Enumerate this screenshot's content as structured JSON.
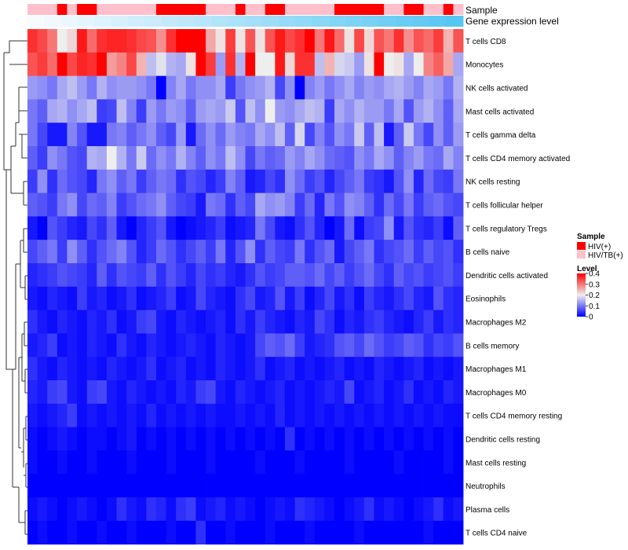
{
  "chart_data": {
    "type": "heatmap",
    "title": "",
    "n_samples": 44,
    "annotation_rows": [
      "Sample",
      "Gene expression level"
    ],
    "rows": [
      "T cells CD8",
      "Monocytes",
      "NK cells activated",
      "Mast cells activated",
      "T cells gamma delta",
      "T cells CD4 memory activated",
      "NK cells resting",
      "T cells follicular helper",
      "T cells regulatory  Tregs",
      "B cells naive",
      "Dendritic cells activated",
      "Eosinophils",
      "Macrophages M2",
      "B cells memory",
      "Macrophages M1",
      "Macrophages M0",
      "T cells CD4 memory resting",
      "Dendritic cells resting",
      "Mast cells resting",
      "Neutrophils",
      "Plasma cells",
      "T cells CD4 naive"
    ],
    "sample_groups": [
      1,
      1,
      1,
      0,
      1,
      0,
      0,
      1,
      1,
      1,
      1,
      1,
      1,
      0,
      0,
      0,
      0,
      0,
      1,
      1,
      1,
      0,
      1,
      1,
      0,
      0,
      1,
      1,
      1,
      1,
      1,
      0,
      0,
      0,
      0,
      0,
      1,
      1,
      0,
      0,
      1,
      1,
      0,
      1
    ],
    "expression_gradient": [
      0,
      0.04,
      0.08,
      0.12,
      0.16,
      0.2,
      0.24,
      0.28,
      0.32,
      0.36,
      0.4,
      0.44,
      0.48,
      0.52,
      0.56,
      0.6,
      0.64,
      0.68,
      0.72,
      0.76,
      0.8,
      0.84,
      0.88,
      0.92,
      0.96,
      1
    ],
    "row_means": [
      0.34,
      0.28,
      0.13,
      0.12,
      0.09,
      0.1,
      0.07,
      0.07,
      0.04,
      0.06,
      0.05,
      0.03,
      0.03,
      0.03,
      0.02,
      0.02,
      0.01,
      0.01,
      0.005,
      0.002,
      0.02,
      0.01
    ],
    "values": [
      [
        0.36,
        0.34,
        0.3,
        0.2,
        0.22,
        0.38,
        0.31,
        0.36,
        0.37,
        0.37,
        0.36,
        0.34,
        0.33,
        0.28,
        0.36,
        0.4,
        0.4,
        0.4,
        0.26,
        0.21,
        0.35,
        0.21,
        0.33,
        0.21,
        0.33,
        0.38,
        0.34,
        0.36,
        0.4,
        0.3,
        0.38,
        0.31,
        0.21,
        0.34,
        0.22,
        0.33,
        0.3,
        0.36,
        0.28,
        0.33,
        0.31,
        0.35,
        0.25,
        0.33
      ],
      [
        0.33,
        0.35,
        0.31,
        0.4,
        0.34,
        0.37,
        0.36,
        0.4,
        0.27,
        0.29,
        0.34,
        0.25,
        0.16,
        0.19,
        0.15,
        0.14,
        0.21,
        0.4,
        0.35,
        0.13,
        0.36,
        0.15,
        0.4,
        0.2,
        0.2,
        0.38,
        0.22,
        0.36,
        0.36,
        0.16,
        0.25,
        0.18,
        0.17,
        0.13,
        0.21,
        0.4,
        0.2,
        0.21,
        0.14,
        0.2,
        0.29,
        0.32,
        0.26,
        0.14
      ],
      [
        0.13,
        0.12,
        0.1,
        0.14,
        0.16,
        0.13,
        0.1,
        0.15,
        0.12,
        0.13,
        0.13,
        0.12,
        0.1,
        0.0,
        0.11,
        0.14,
        0.1,
        0.12,
        0.12,
        0.14,
        0.05,
        0.1,
        0.12,
        0.13,
        0.15,
        0.06,
        0.12,
        0.0,
        0.11,
        0.13,
        0.1,
        0.12,
        0.14,
        0.11,
        0.13,
        0.12,
        0.14,
        0.15,
        0.13,
        0.11,
        0.14,
        0.13,
        0.1,
        0.15
      ],
      [
        0.1,
        0.08,
        0.14,
        0.15,
        0.12,
        0.14,
        0.16,
        0.05,
        0.06,
        0.16,
        0.11,
        0.05,
        0.13,
        0.1,
        0.13,
        0.12,
        0.08,
        0.13,
        0.14,
        0.13,
        0.17,
        0.07,
        0.16,
        0.12,
        0.2,
        0.13,
        0.12,
        0.14,
        0.16,
        0.15,
        0.05,
        0.14,
        0.12,
        0.15,
        0.13,
        0.13,
        0.1,
        0.14,
        0.07,
        0.13,
        0.15,
        0.12,
        0.08,
        0.14
      ],
      [
        0.1,
        0.06,
        0.02,
        0.02,
        0.11,
        0.07,
        0.02,
        0.02,
        0.1,
        0.11,
        0.08,
        0.1,
        0.12,
        0.08,
        0.06,
        0.13,
        0.02,
        0.09,
        0.12,
        0.09,
        0.13,
        0.11,
        0.1,
        0.14,
        0.12,
        0.16,
        0.08,
        0.18,
        0.06,
        0.11,
        0.07,
        0.12,
        0.1,
        0.17,
        0.08,
        0.16,
        0.02,
        0.08,
        0.17,
        0.1,
        0.06,
        0.12,
        0.08,
        0.13
      ],
      [
        0.08,
        0.05,
        0.12,
        0.1,
        0.07,
        0.06,
        0.15,
        0.14,
        0.2,
        0.15,
        0.1,
        0.17,
        0.09,
        0.12,
        0.1,
        0.15,
        0.11,
        0.08,
        0.12,
        0.1,
        0.16,
        0.12,
        0.06,
        0.1,
        0.08,
        0.09,
        0.13,
        0.11,
        0.14,
        0.12,
        0.09,
        0.08,
        0.07,
        0.12,
        0.1,
        0.14,
        0.12,
        0.08,
        0.11,
        0.13,
        0.1,
        0.09,
        0.14,
        0.11
      ],
      [
        0.05,
        0.12,
        0.04,
        0.09,
        0.07,
        0.06,
        0.03,
        0.1,
        0.12,
        0.08,
        0.1,
        0.05,
        0.08,
        0.1,
        0.09,
        0.04,
        0.07,
        0.06,
        0.03,
        0.05,
        0.11,
        0.08,
        0.02,
        0.03,
        0.06,
        0.04,
        0.12,
        0.09,
        0.05,
        0.07,
        0.03,
        0.06,
        0.08,
        0.1,
        0.05,
        0.04,
        0.02,
        0.07,
        0.12,
        0.03,
        0.09,
        0.06,
        0.05,
        0.1
      ],
      [
        0.08,
        0.07,
        0.05,
        0.1,
        0.12,
        0.06,
        0.09,
        0.08,
        0.11,
        0.05,
        0.07,
        0.09,
        0.1,
        0.12,
        0.08,
        0.06,
        0.05,
        0.02,
        0.1,
        0.09,
        0.04,
        0.08,
        0.06,
        0.14,
        0.12,
        0.13,
        0.11,
        0.05,
        0.09,
        0.03,
        0.1,
        0.07,
        0.12,
        0.11,
        0.08,
        0.04,
        0.09,
        0.06,
        0.1,
        0.05,
        0.08,
        0.09,
        0.07,
        0.06
      ],
      [
        0.02,
        0.0,
        0.07,
        0.05,
        0.03,
        0.02,
        0.06,
        0.04,
        0.08,
        0.02,
        0.0,
        0.03,
        0.05,
        0.07,
        0.02,
        0.0,
        0.01,
        0.02,
        0.03,
        0.05,
        0.01,
        0.02,
        0.03,
        0.1,
        0.06,
        0.02,
        0.01,
        0.04,
        0.07,
        0.03,
        0.0,
        0.02,
        0.09,
        0.01,
        0.05,
        0.06,
        0.12,
        0.02,
        0.07,
        0.04,
        0.03,
        0.05,
        0.01,
        0.08
      ],
      [
        0.06,
        0.08,
        0.1,
        0.05,
        0.12,
        0.08,
        0.04,
        0.07,
        0.09,
        0.11,
        0.07,
        0.03,
        0.05,
        0.09,
        0.07,
        0.04,
        0.06,
        0.08,
        0.05,
        0.1,
        0.03,
        0.07,
        0.12,
        0.04,
        0.08,
        0.06,
        0.05,
        0.1,
        0.04,
        0.07,
        0.09,
        0.02,
        0.06,
        0.08,
        0.1,
        0.04,
        0.06,
        0.07,
        0.09,
        0.05,
        0.08,
        0.06,
        0.07,
        0.04
      ],
      [
        0.03,
        0.04,
        0.05,
        0.07,
        0.06,
        0.05,
        0.03,
        0.08,
        0.04,
        0.07,
        0.06,
        0.05,
        0.08,
        0.04,
        0.07,
        0.05,
        0.03,
        0.06,
        0.04,
        0.05,
        0.03,
        0.02,
        0.04,
        0.07,
        0.05,
        0.06,
        0.08,
        0.08,
        0.07,
        0.09,
        0.06,
        0.08,
        0.05,
        0.07,
        0.09,
        0.06,
        0.04,
        0.08,
        0.06,
        0.07,
        0.05,
        0.06,
        0.07,
        0.05
      ],
      [
        0.02,
        0.01,
        0.03,
        0.02,
        0.01,
        0.05,
        0.02,
        0.03,
        0.01,
        0.02,
        0.04,
        0.01,
        0.02,
        0.03,
        0.05,
        0.01,
        0.02,
        0.06,
        0.03,
        0.02,
        0.01,
        0.04,
        0.06,
        0.02,
        0.03,
        0.07,
        0.02,
        0.05,
        0.01,
        0.03,
        0.06,
        0.02,
        0.04,
        0.01,
        0.05,
        0.03,
        0.02,
        0.04,
        0.06,
        0.03,
        0.02,
        0.07,
        0.04,
        0.03
      ],
      [
        0.04,
        0.02,
        0.01,
        0.03,
        0.02,
        0.01,
        0.03,
        0.02,
        0.04,
        0.01,
        0.02,
        0.05,
        0.06,
        0.02,
        0.01,
        0.03,
        0.02,
        0.01,
        0.02,
        0.03,
        0.01,
        0.04,
        0.02,
        0.05,
        0.03,
        0.02,
        0.01,
        0.03,
        0.02,
        0.06,
        0.04,
        0.01,
        0.03,
        0.02,
        0.04,
        0.05,
        0.03,
        0.02,
        0.01,
        0.03,
        0.05,
        0.02,
        0.04,
        0.03
      ],
      [
        0.02,
        0.03,
        0.05,
        0.01,
        0.02,
        0.01,
        0.03,
        0.02,
        0.01,
        0.04,
        0.02,
        0.01,
        0.03,
        0.02,
        0.01,
        0.02,
        0.03,
        0.02,
        0.01,
        0.03,
        0.02,
        0.01,
        0.02,
        0.06,
        0.08,
        0.07,
        0.09,
        0.05,
        0.02,
        0.03,
        0.04,
        0.07,
        0.08,
        0.06,
        0.09,
        0.07,
        0.05,
        0.06,
        0.08,
        0.07,
        0.04,
        0.06,
        0.05,
        0.07
      ],
      [
        0.04,
        0.02,
        0.01,
        0.03,
        0.02,
        0.01,
        0.02,
        0.01,
        0.03,
        0.02,
        0.01,
        0.02,
        0.04,
        0.01,
        0.02,
        0.03,
        0.01,
        0.02,
        0.01,
        0.03,
        0.02,
        0.01,
        0.02,
        0.04,
        0.01,
        0.02,
        0.03,
        0.01,
        0.02,
        0.01,
        0.02,
        0.03,
        0.01,
        0.02,
        0.01,
        0.03,
        0.02,
        0.01,
        0.02,
        0.03,
        0.01,
        0.02,
        0.01,
        0.02
      ],
      [
        0.03,
        0.02,
        0.05,
        0.06,
        0.02,
        0.01,
        0.05,
        0.06,
        0.02,
        0.01,
        0.03,
        0.02,
        0.01,
        0.02,
        0.01,
        0.03,
        0.02,
        0.05,
        0.06,
        0.02,
        0.01,
        0.03,
        0.02,
        0.01,
        0.02,
        0.03,
        0.01,
        0.02,
        0.01,
        0.02,
        0.03,
        0.02,
        0.06,
        0.01,
        0.02,
        0.03,
        0.01,
        0.02,
        0.04,
        0.01,
        0.02,
        0.01,
        0.03,
        0.02
      ],
      [
        0.02,
        0.01,
        0.02,
        0.03,
        0.05,
        0.01,
        0.02,
        0.01,
        0.02,
        0.01,
        0.02,
        0.01,
        0.03,
        0.01,
        0.02,
        0.01,
        0.02,
        0.01,
        0.02,
        0.01,
        0.01,
        0.02,
        0.01,
        0.02,
        0.01,
        0.03,
        0.01,
        0.02,
        0.01,
        0.02,
        0.01,
        0.02,
        0.01,
        0.02,
        0.01,
        0.02,
        0.01,
        0.02,
        0.01,
        0.02,
        0.01,
        0.02,
        0.01,
        0.01
      ],
      [
        0.01,
        0.0,
        0.01,
        0.02,
        0.01,
        0.0,
        0.01,
        0.01,
        0.0,
        0.01,
        0.02,
        0.0,
        0.01,
        0.0,
        0.01,
        0.0,
        0.01,
        0.0,
        0.01,
        0.0,
        0.01,
        0.0,
        0.01,
        0.0,
        0.01,
        0.0,
        0.04,
        0.0,
        0.01,
        0.0,
        0.01,
        0.0,
        0.01,
        0.0,
        0.01,
        0.0,
        0.01,
        0.0,
        0.01,
        0.0,
        0.01,
        0.0,
        0.01,
        0.0
      ],
      [
        0.01,
        0.0,
        0.0,
        0.01,
        0.0,
        0.0,
        0.01,
        0.0,
        0.0,
        0.0,
        0.01,
        0.0,
        0.0,
        0.0,
        0.01,
        0.0,
        0.0,
        0.0,
        0.01,
        0.0,
        0.0,
        0.0,
        0.0,
        0.01,
        0.0,
        0.0,
        0.0,
        0.01,
        0.0,
        0.0,
        0.0,
        0.0,
        0.01,
        0.0,
        0.0,
        0.0,
        0.0,
        0.01,
        0.0,
        0.0,
        0.0,
        0.0,
        0.01,
        0.0
      ],
      [
        0.0,
        0.0,
        0.0,
        0.0,
        0.0,
        0.0,
        0.0,
        0.0,
        0.0,
        0.0,
        0.0,
        0.0,
        0.0,
        0.0,
        0.0,
        0.0,
        0.0,
        0.0,
        0.0,
        0.0,
        0.0,
        0.0,
        0.0,
        0.0,
        0.0,
        0.0,
        0.0,
        0.0,
        0.0,
        0.0,
        0.0,
        0.0,
        0.0,
        0.0,
        0.0,
        0.0,
        0.0,
        0.0,
        0.0,
        0.0,
        0.0,
        0.0,
        0.0,
        0.0
      ],
      [
        0.01,
        0.02,
        0.01,
        0.0,
        0.01,
        0.02,
        0.01,
        0.0,
        0.01,
        0.04,
        0.02,
        0.01,
        0.04,
        0.03,
        0.01,
        0.04,
        0.05,
        0.01,
        0.02,
        0.03,
        0.01,
        0.02,
        0.01,
        0.0,
        0.01,
        0.02,
        0.01,
        0.04,
        0.03,
        0.02,
        0.01,
        0.0,
        0.01,
        0.02,
        0.04,
        0.01,
        0.02,
        0.01,
        0.0,
        0.01,
        0.02,
        0.04,
        0.01,
        0.02
      ],
      [
        0.0,
        0.01,
        0.0,
        0.0,
        0.01,
        0.0,
        0.0,
        0.01,
        0.0,
        0.0,
        0.01,
        0.0,
        0.0,
        0.0,
        0.01,
        0.0,
        0.0,
        0.04,
        0.0,
        0.0,
        0.01,
        0.0,
        0.0,
        0.0,
        0.01,
        0.0,
        0.0,
        0.0,
        0.01,
        0.0,
        0.0,
        0.0,
        0.0,
        0.01,
        0.0,
        0.0,
        0.0,
        0.0,
        0.0,
        0.0,
        0.01,
        0.0,
        0.0,
        0.0
      ]
    ]
  },
  "legend": {
    "sample_title": "Sample",
    "sample_items": [
      {
        "label": "HIV(+)",
        "color": "#FF0000"
      },
      {
        "label": "HIV/TB(+)",
        "color": "#FFC0CB"
      }
    ],
    "level_title": "Level",
    "level_ticks": [
      "0.4",
      "0.3",
      "0.2",
      "0.1",
      "0"
    ],
    "level_tick_values": [
      0.4,
      0.3,
      0.2,
      0.1,
      0
    ]
  },
  "colors": {
    "low": "#0000FF",
    "mid": "#EEEEEE",
    "high": "#FF0000",
    "annotation_low": "#F7FBFF",
    "annotation_high": "#56C6F2"
  }
}
